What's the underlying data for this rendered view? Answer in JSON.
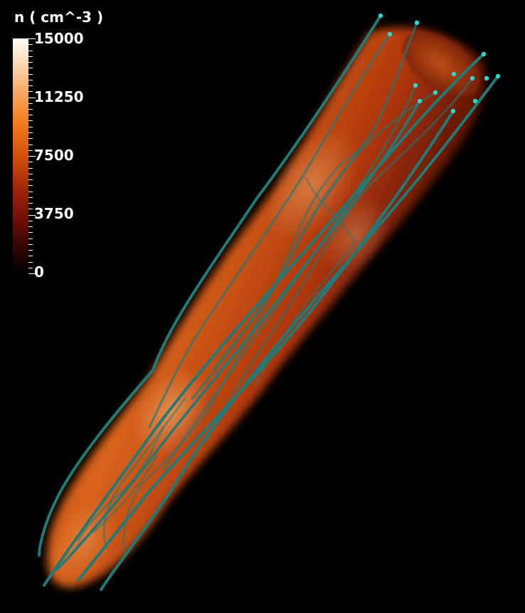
{
  "colorbar": {
    "title": "n ( cm^-3 )",
    "labels": [
      "15000",
      "11250",
      "7500",
      "3750",
      "0"
    ],
    "colors": [
      "#ffffff",
      "#f9ad6b",
      "#f27b1c",
      "#a22608",
      "#000000"
    ]
  },
  "scene": {
    "background": "#000000",
    "tube_color": "#d2530f",
    "fieldline_color": "#1f7a78",
    "fieldline_tip_color": "#2fd6cf"
  }
}
